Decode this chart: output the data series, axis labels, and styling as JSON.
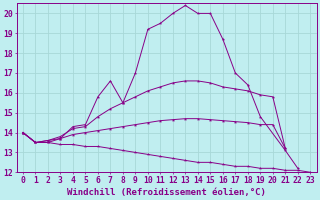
{
  "background_color": "#c0eef0",
  "grid_color": "#a8d8d8",
  "line_color": "#880088",
  "marker": "*",
  "xlabel": "Windchill (Refroidissement éolien,°C)",
  "xlabel_fontsize": 6.5,
  "tick_fontsize": 5.8,
  "xlim": [
    -0.5,
    23.5
  ],
  "ylim": [
    12,
    20.5
  ],
  "yticks": [
    12,
    13,
    14,
    15,
    16,
    17,
    18,
    19,
    20
  ],
  "xticks": [
    0,
    1,
    2,
    3,
    4,
    5,
    6,
    7,
    8,
    9,
    10,
    11,
    12,
    13,
    14,
    15,
    16,
    17,
    18,
    19,
    20,
    21,
    22,
    23
  ],
  "series": [
    [
      14.0,
      13.5,
      13.5,
      13.7,
      14.3,
      14.4,
      15.8,
      16.6,
      15.5,
      17.0,
      19.2,
      19.5,
      20.0,
      20.4,
      20.0,
      20.0,
      18.7,
      17.0,
      16.4,
      14.8,
      null,
      13.1,
      12.2,
      null
    ],
    [
      14.0,
      13.5,
      13.6,
      13.8,
      14.2,
      14.3,
      14.8,
      15.2,
      15.5,
      15.8,
      16.1,
      16.3,
      16.5,
      16.6,
      16.6,
      16.5,
      16.3,
      16.2,
      16.1,
      15.9,
      15.8,
      13.2,
      null,
      null
    ],
    [
      14.0,
      13.5,
      13.6,
      13.7,
      13.9,
      14.0,
      14.1,
      14.2,
      14.3,
      14.4,
      14.5,
      14.6,
      14.65,
      14.7,
      14.7,
      14.65,
      14.6,
      14.55,
      14.5,
      14.4,
      14.4,
      13.2,
      null,
      null
    ],
    [
      14.0,
      13.5,
      13.5,
      13.4,
      13.4,
      13.3,
      13.3,
      13.2,
      13.1,
      13.0,
      12.9,
      12.8,
      12.7,
      12.6,
      12.5,
      12.5,
      12.4,
      12.3,
      12.3,
      12.2,
      12.2,
      12.1,
      12.1,
      12.0
    ]
  ]
}
